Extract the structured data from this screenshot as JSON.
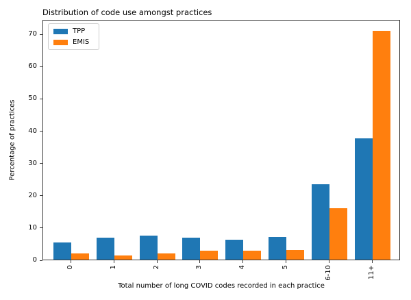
{
  "chart_data": {
    "type": "bar",
    "title": "Distribution of code use amongst practices",
    "xlabel": "Total number of long COVID codes recorded in each practice",
    "ylabel": "Percentage of practices",
    "categories": [
      "0",
      "1",
      "2",
      "3",
      "4",
      "5",
      "6-10",
      "11+"
    ],
    "series": [
      {
        "name": "TPP",
        "color": "#1f77b4",
        "values": [
          5.4,
          6.9,
          7.5,
          6.9,
          6.1,
          7.0,
          23.3,
          37.6
        ]
      },
      {
        "name": "EMIS",
        "color": "#ff7f0e",
        "values": [
          2.0,
          1.3,
          2.0,
          2.8,
          2.8,
          3.0,
          16.0,
          71.0
        ]
      }
    ],
    "yticks": [
      0,
      10,
      20,
      30,
      40,
      50,
      60,
      70
    ],
    "ylim": [
      0,
      74.5
    ],
    "grid": false,
    "legend_position": "upper left",
    "background_color": "#ffffff",
    "axis_color": "#363636"
  }
}
